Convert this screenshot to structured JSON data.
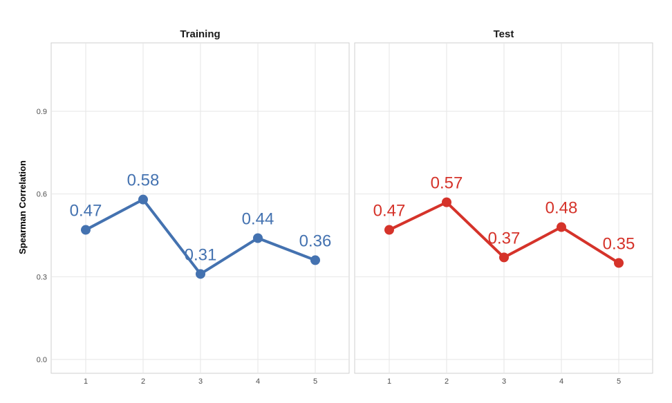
{
  "chart_data": {
    "type": "line",
    "ylabel": "Spearman Correlation",
    "ylim": [
      0,
      1.15
    ],
    "yticks": [
      "0.0",
      "0.3",
      "0.6",
      "0.9"
    ],
    "ytick_values": [
      0.0,
      0.3,
      0.6,
      0.9
    ],
    "x": [
      "1",
      "2",
      "3",
      "4",
      "5"
    ],
    "grid": true,
    "panels": [
      {
        "title": "Training",
        "color": "#4472b0",
        "values": [
          0.47,
          0.58,
          0.31,
          0.44,
          0.36
        ],
        "labels": [
          "0.47",
          "0.58",
          "0.31",
          "0.44",
          "0.36"
        ]
      },
      {
        "title": "Test",
        "color": "#d5332a",
        "values": [
          0.47,
          0.57,
          0.37,
          0.48,
          0.35
        ],
        "labels": [
          "0.47",
          "0.57",
          "0.37",
          "0.48",
          "0.35"
        ]
      }
    ]
  }
}
